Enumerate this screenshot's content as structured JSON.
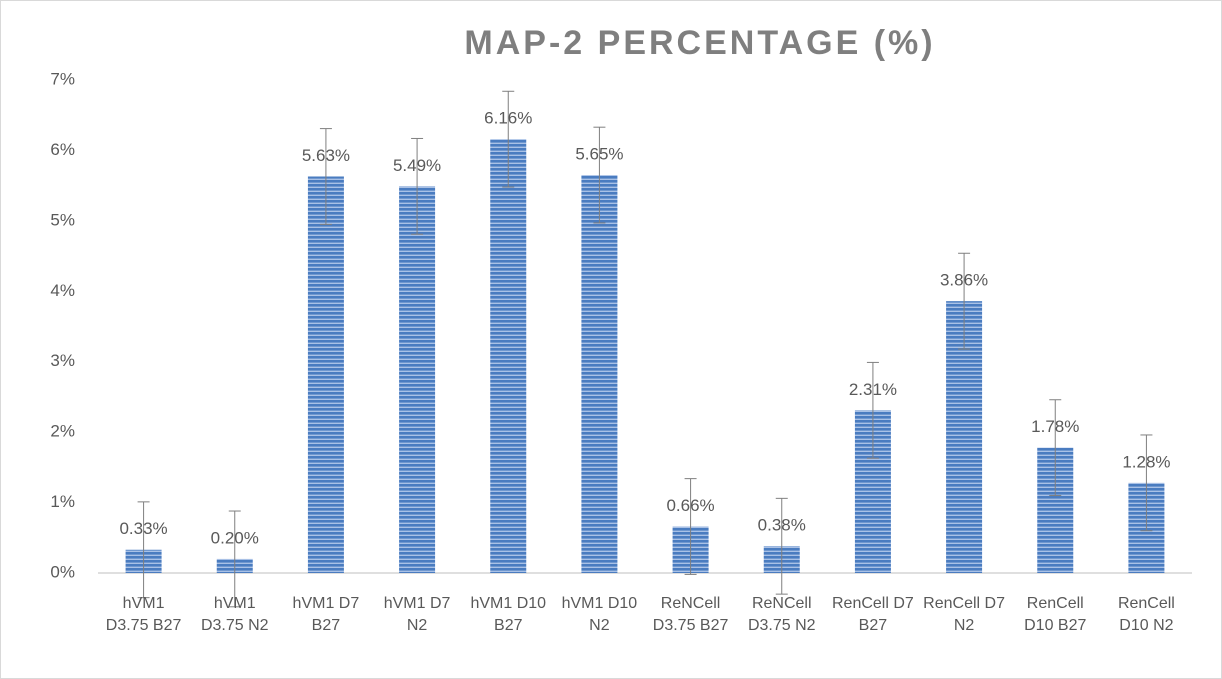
{
  "chart_data": {
    "type": "bar",
    "title": "MAP-2 PERCENTAGE (%)",
    "categories": [
      "hVM1 D3.75 B27",
      "hVM1 D3.75 N2",
      "hVM1 D7 B27",
      "hVM1 D7 N2",
      "hVM1 D10 B27",
      "hVM1 D10 N2",
      "ReNCell D3.75 B27",
      "ReNCell D3.75 N2",
      "RenCell D7 B27",
      "RenCell D7 N2",
      "RenCell D10 B27",
      "RenCell D10 N2"
    ],
    "values": [
      0.33,
      0.2,
      5.63,
      5.49,
      6.16,
      5.65,
      0.66,
      0.38,
      2.31,
      3.86,
      1.78,
      1.28
    ],
    "value_labels": [
      "0.33%",
      "0.20%",
      "5.63%",
      "5.49%",
      "6.16%",
      "5.65%",
      "0.66%",
      "0.38%",
      "2.31%",
      "3.86%",
      "1.78%",
      "1.28%"
    ],
    "errors": [
      0.68,
      0.68,
      0.68,
      0.68,
      0.68,
      0.68,
      0.68,
      0.68,
      0.68,
      0.68,
      0.68,
      0.68
    ],
    "color": "#4a7cc0",
    "ylim": [
      0,
      7
    ],
    "yticks": [
      {
        "value": 0,
        "label": "0%"
      },
      {
        "value": 1,
        "label": "1%"
      },
      {
        "value": 2,
        "label": "2%"
      },
      {
        "value": 3,
        "label": "3%"
      },
      {
        "value": 4,
        "label": "4%"
      },
      {
        "value": 5,
        "label": "5%"
      },
      {
        "value": 6,
        "label": "6%"
      },
      {
        "value": 7,
        "label": "7%"
      }
    ],
    "grid": false
  }
}
